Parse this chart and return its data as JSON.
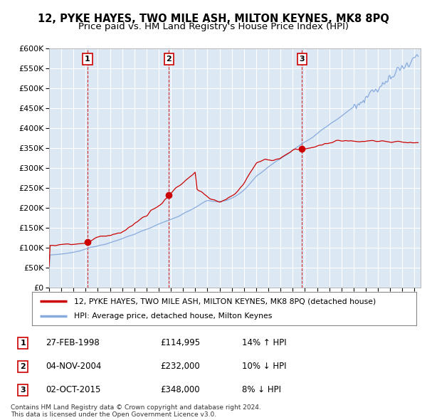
{
  "title": "12, PYKE HAYES, TWO MILE ASH, MILTON KEYNES, MK8 8PQ",
  "subtitle": "Price paid vs. HM Land Registry's House Price Index (HPI)",
  "xlim_start": 1995.0,
  "xlim_end": 2025.5,
  "ylim": [
    0,
    600000
  ],
  "yticks": [
    0,
    50000,
    100000,
    150000,
    200000,
    250000,
    300000,
    350000,
    400000,
    450000,
    500000,
    550000,
    600000
  ],
  "background_color": "#dce9f5",
  "grid_color": "#ffffff",
  "legend_line1": "12, PYKE HAYES, TWO MILE ASH, MILTON KEYNES, MK8 8PQ (detached house)",
  "legend_line2": "HPI: Average price, detached house, Milton Keynes",
  "sale1_date_x": 1998.15,
  "sale1_price": 114995,
  "sale2_date_x": 2004.84,
  "sale2_price": 232000,
  "sale3_date_x": 2015.75,
  "sale3_price": 348000,
  "table_entries": [
    {
      "num": "1",
      "date": "27-FEB-1998",
      "price": "£114,995",
      "hpi": "14% ↑ HPI"
    },
    {
      "num": "2",
      "date": "04-NOV-2004",
      "price": "£232,000",
      "hpi": "10% ↓ HPI"
    },
    {
      "num": "3",
      "date": "02-OCT-2015",
      "price": "£348,000",
      "hpi": "8% ↓ HPI"
    }
  ],
  "footer": "Contains HM Land Registry data © Crown copyright and database right 2024.\nThis data is licensed under the Open Government Licence v3.0.",
  "sale_line_color": "#cc0000",
  "sale_dot_color": "#cc0000",
  "hpi_line_color": "#88aadd",
  "dashed_line_color": "#cc0000",
  "title_fontsize": 10.5,
  "subtitle_fontsize": 9.5
}
